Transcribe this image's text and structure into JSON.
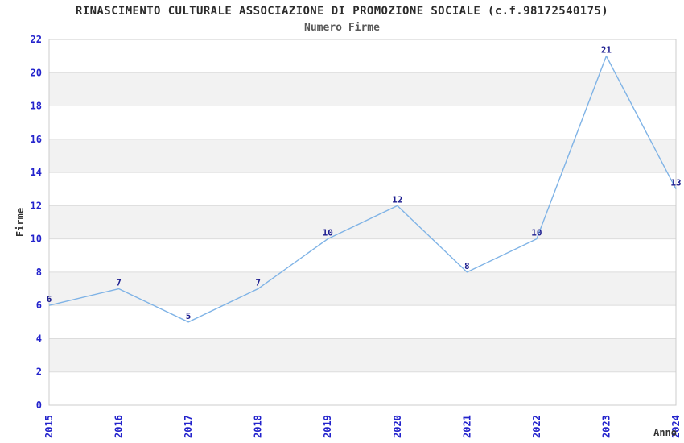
{
  "chart_data": {
    "type": "line",
    "title": "RINASCIMENTO CULTURALE ASSOCIAZIONE DI PROMOZIONE SOCIALE (c.f.98172540175)",
    "subtitle": "Numero Firme",
    "categories": [
      "2015",
      "2016",
      "2017",
      "2018",
      "2019",
      "2020",
      "2021",
      "2022",
      "2023",
      "2024"
    ],
    "values": [
      6,
      7,
      5,
      7,
      10,
      12,
      8,
      10,
      21,
      13
    ],
    "xlabel": "Anno",
    "ylabel": "Firme",
    "ylim": [
      0,
      22
    ],
    "ytick_step": 2,
    "yticks": [
      0,
      2,
      4,
      6,
      8,
      10,
      12,
      14,
      16,
      18,
      20,
      22
    ],
    "grid": "alternating-horizontal-bands",
    "legend": "none",
    "point_labels_shown": true,
    "x_tick_rotation_deg": 90,
    "colors": {
      "line": "#7fb3e6",
      "point_label": "#1c1c8f",
      "tick_label": "#2323cc",
      "axis_label": "#333333",
      "band": "#f2f2f2",
      "gridline": "#dcdcdc",
      "plot_border": "#cccccc",
      "title": "#2b2b2b",
      "subtitle": "#595959"
    }
  }
}
